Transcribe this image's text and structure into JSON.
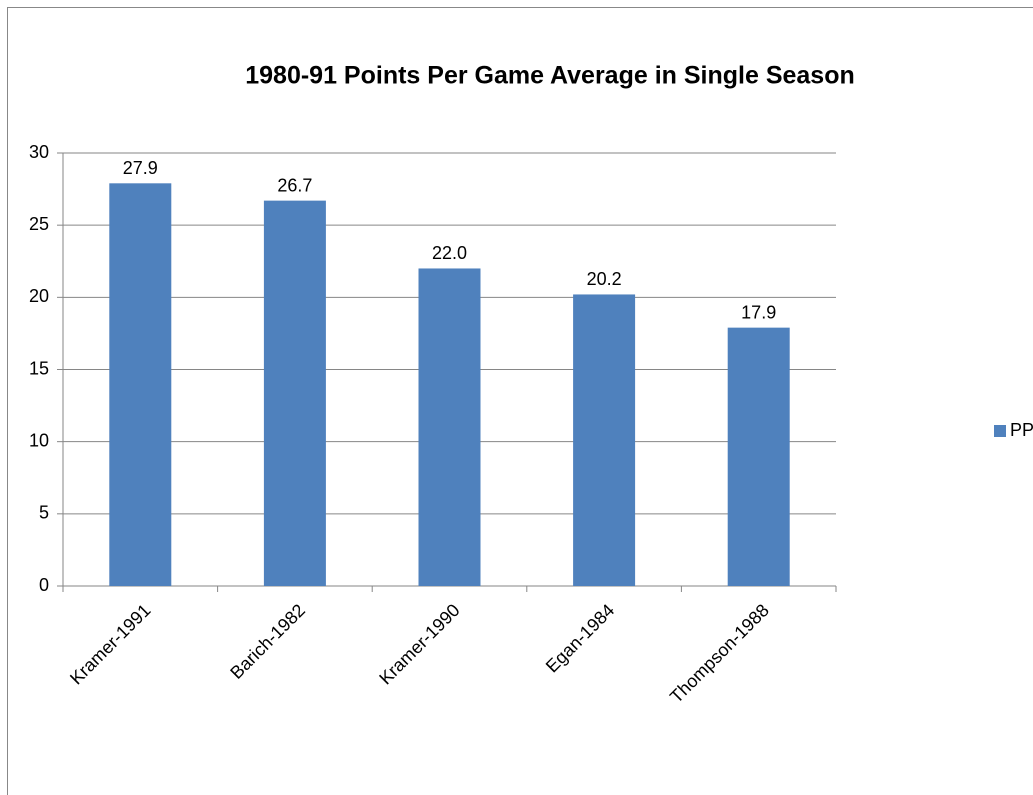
{
  "chart_data": {
    "type": "bar",
    "title": "1980-91 Points Per Game Average in Single Season",
    "categories": [
      "Kramer-1991",
      "Barich-1982",
      "Kramer-1990",
      "Egan-1984",
      "Thompson-1988"
    ],
    "series": [
      {
        "name": "PPG",
        "color": "#4f81bd",
        "values": [
          27.9,
          26.7,
          22,
          20.2,
          17.9
        ],
        "value_labels": [
          "27.9",
          "26.7",
          "22.0",
          "20.2",
          "17.9"
        ]
      }
    ],
    "ylim": [
      0,
      30
    ],
    "yticks": [
      0,
      5,
      10,
      15,
      20,
      25,
      30
    ],
    "grid": true,
    "legend": "right"
  }
}
